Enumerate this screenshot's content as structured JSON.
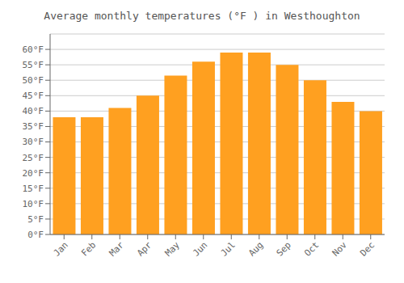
{
  "chart_data": {
    "type": "bar",
    "title": "Average monthly temperatures (°F ) in Westhoughton",
    "categories": [
      "Jan",
      "Feb",
      "Mar",
      "Apr",
      "May",
      "Jun",
      "Jul",
      "Aug",
      "Sep",
      "Oct",
      "Nov",
      "Dec"
    ],
    "values": [
      38,
      38,
      41,
      45,
      51.5,
      56,
      59,
      59,
      55,
      50,
      43,
      40
    ],
    "color": "#FFA020",
    "ylim": [
      0,
      65
    ],
    "yticks": [
      {
        "value": 0,
        "label": "0°F"
      },
      {
        "value": 5,
        "label": "5°F"
      },
      {
        "value": 10,
        "label": "10°F"
      },
      {
        "value": 15,
        "label": "15°F"
      },
      {
        "value": 20,
        "label": "20°F"
      },
      {
        "value": 25,
        "label": "25°F"
      },
      {
        "value": 30,
        "label": "30°F"
      },
      {
        "value": 35,
        "label": "35°F"
      },
      {
        "value": 40,
        "label": "40°F"
      },
      {
        "value": 45,
        "label": "45°F"
      },
      {
        "value": 50,
        "label": "50°F"
      },
      {
        "value": 55,
        "label": "55°F"
      },
      {
        "value": 60,
        "label": "60°F"
      }
    ],
    "grid": true
  }
}
